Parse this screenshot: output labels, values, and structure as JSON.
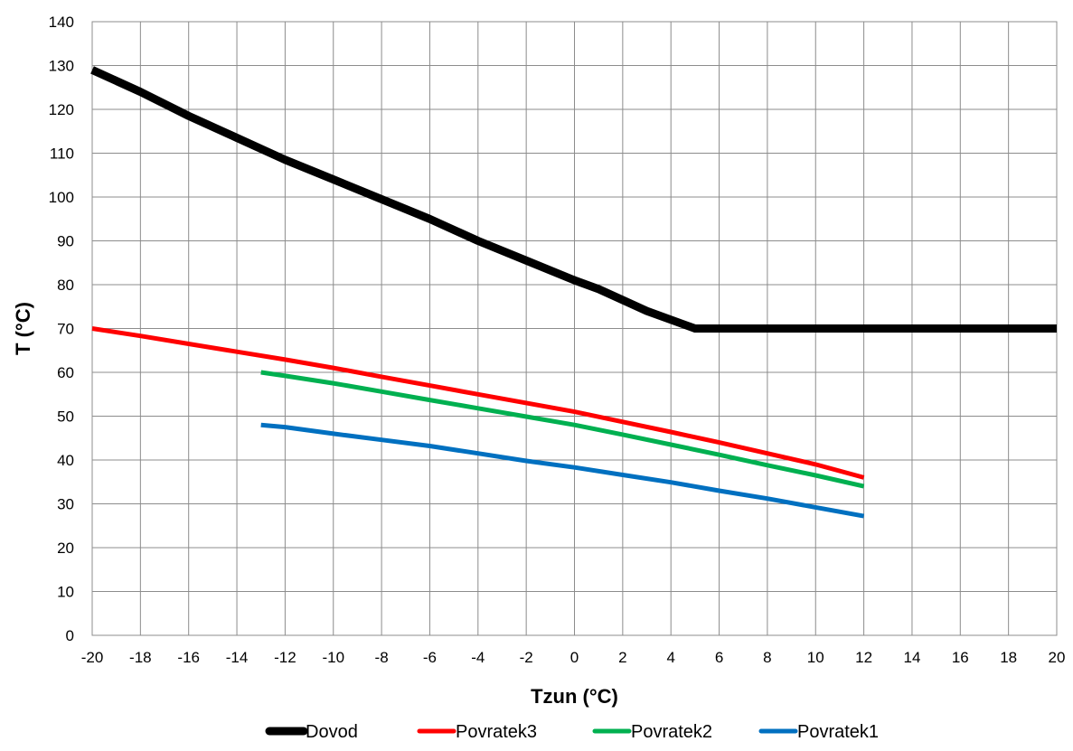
{
  "chart_data": {
    "type": "line",
    "title": "",
    "xlabel": "Tzun (°C)",
    "ylabel": "T (°C)",
    "xlim": [
      -20,
      20
    ],
    "ylim": [
      0,
      140
    ],
    "xticks": [
      -20,
      -18,
      -16,
      -14,
      -12,
      -10,
      -8,
      -6,
      -4,
      -2,
      0,
      2,
      4,
      6,
      8,
      10,
      12,
      14,
      16,
      18,
      20
    ],
    "yticks": [
      0,
      10,
      20,
      30,
      40,
      50,
      60,
      70,
      80,
      90,
      100,
      110,
      120,
      130,
      140
    ],
    "grid": true,
    "legend_position": "bottom",
    "series": [
      {
        "name": "Dovod",
        "color": "#000000",
        "x": [
          -20,
          -18,
          -16,
          -14,
          -12,
          -10,
          -8,
          -6,
          -4,
          -2,
          0,
          1,
          2,
          3,
          4,
          5,
          10,
          15,
          20
        ],
        "y": [
          129,
          124,
          118.5,
          113.5,
          108.5,
          104,
          99.5,
          95,
          90,
          85.5,
          81,
          79,
          76.5,
          74,
          72,
          70,
          70,
          70,
          70
        ]
      },
      {
        "name": "Povratek3",
        "color": "#ff0000",
        "x": [
          -20,
          -18,
          -16,
          -14,
          -12,
          -10,
          -8,
          -6,
          -4,
          -2,
          0,
          2,
          4,
          6,
          8,
          10,
          12
        ],
        "y": [
          70,
          68.3,
          66.5,
          64.7,
          62.9,
          61,
          59,
          57,
          55,
          53,
          51,
          48.7,
          46.4,
          44,
          41.5,
          39,
          36
        ]
      },
      {
        "name": "Povratek2",
        "color": "#00b050",
        "x": [
          -13,
          -12,
          -10,
          -8,
          -6,
          -4,
          -2,
          0,
          2,
          4,
          6,
          8,
          10,
          12
        ],
        "y": [
          60,
          59.2,
          57.5,
          55.6,
          53.7,
          51.8,
          49.9,
          48,
          45.8,
          43.5,
          41.2,
          38.8,
          36.5,
          34
        ]
      },
      {
        "name": "Povratek1",
        "color": "#0070c0",
        "x": [
          -13,
          -12,
          -10,
          -8,
          -6,
          -4,
          -2,
          0,
          2,
          4,
          6,
          8,
          10,
          12
        ],
        "y": [
          48,
          47.5,
          46,
          44.6,
          43.2,
          41.5,
          39.8,
          38.3,
          36.6,
          34.9,
          33,
          31.2,
          29.2,
          27.2
        ]
      }
    ]
  }
}
